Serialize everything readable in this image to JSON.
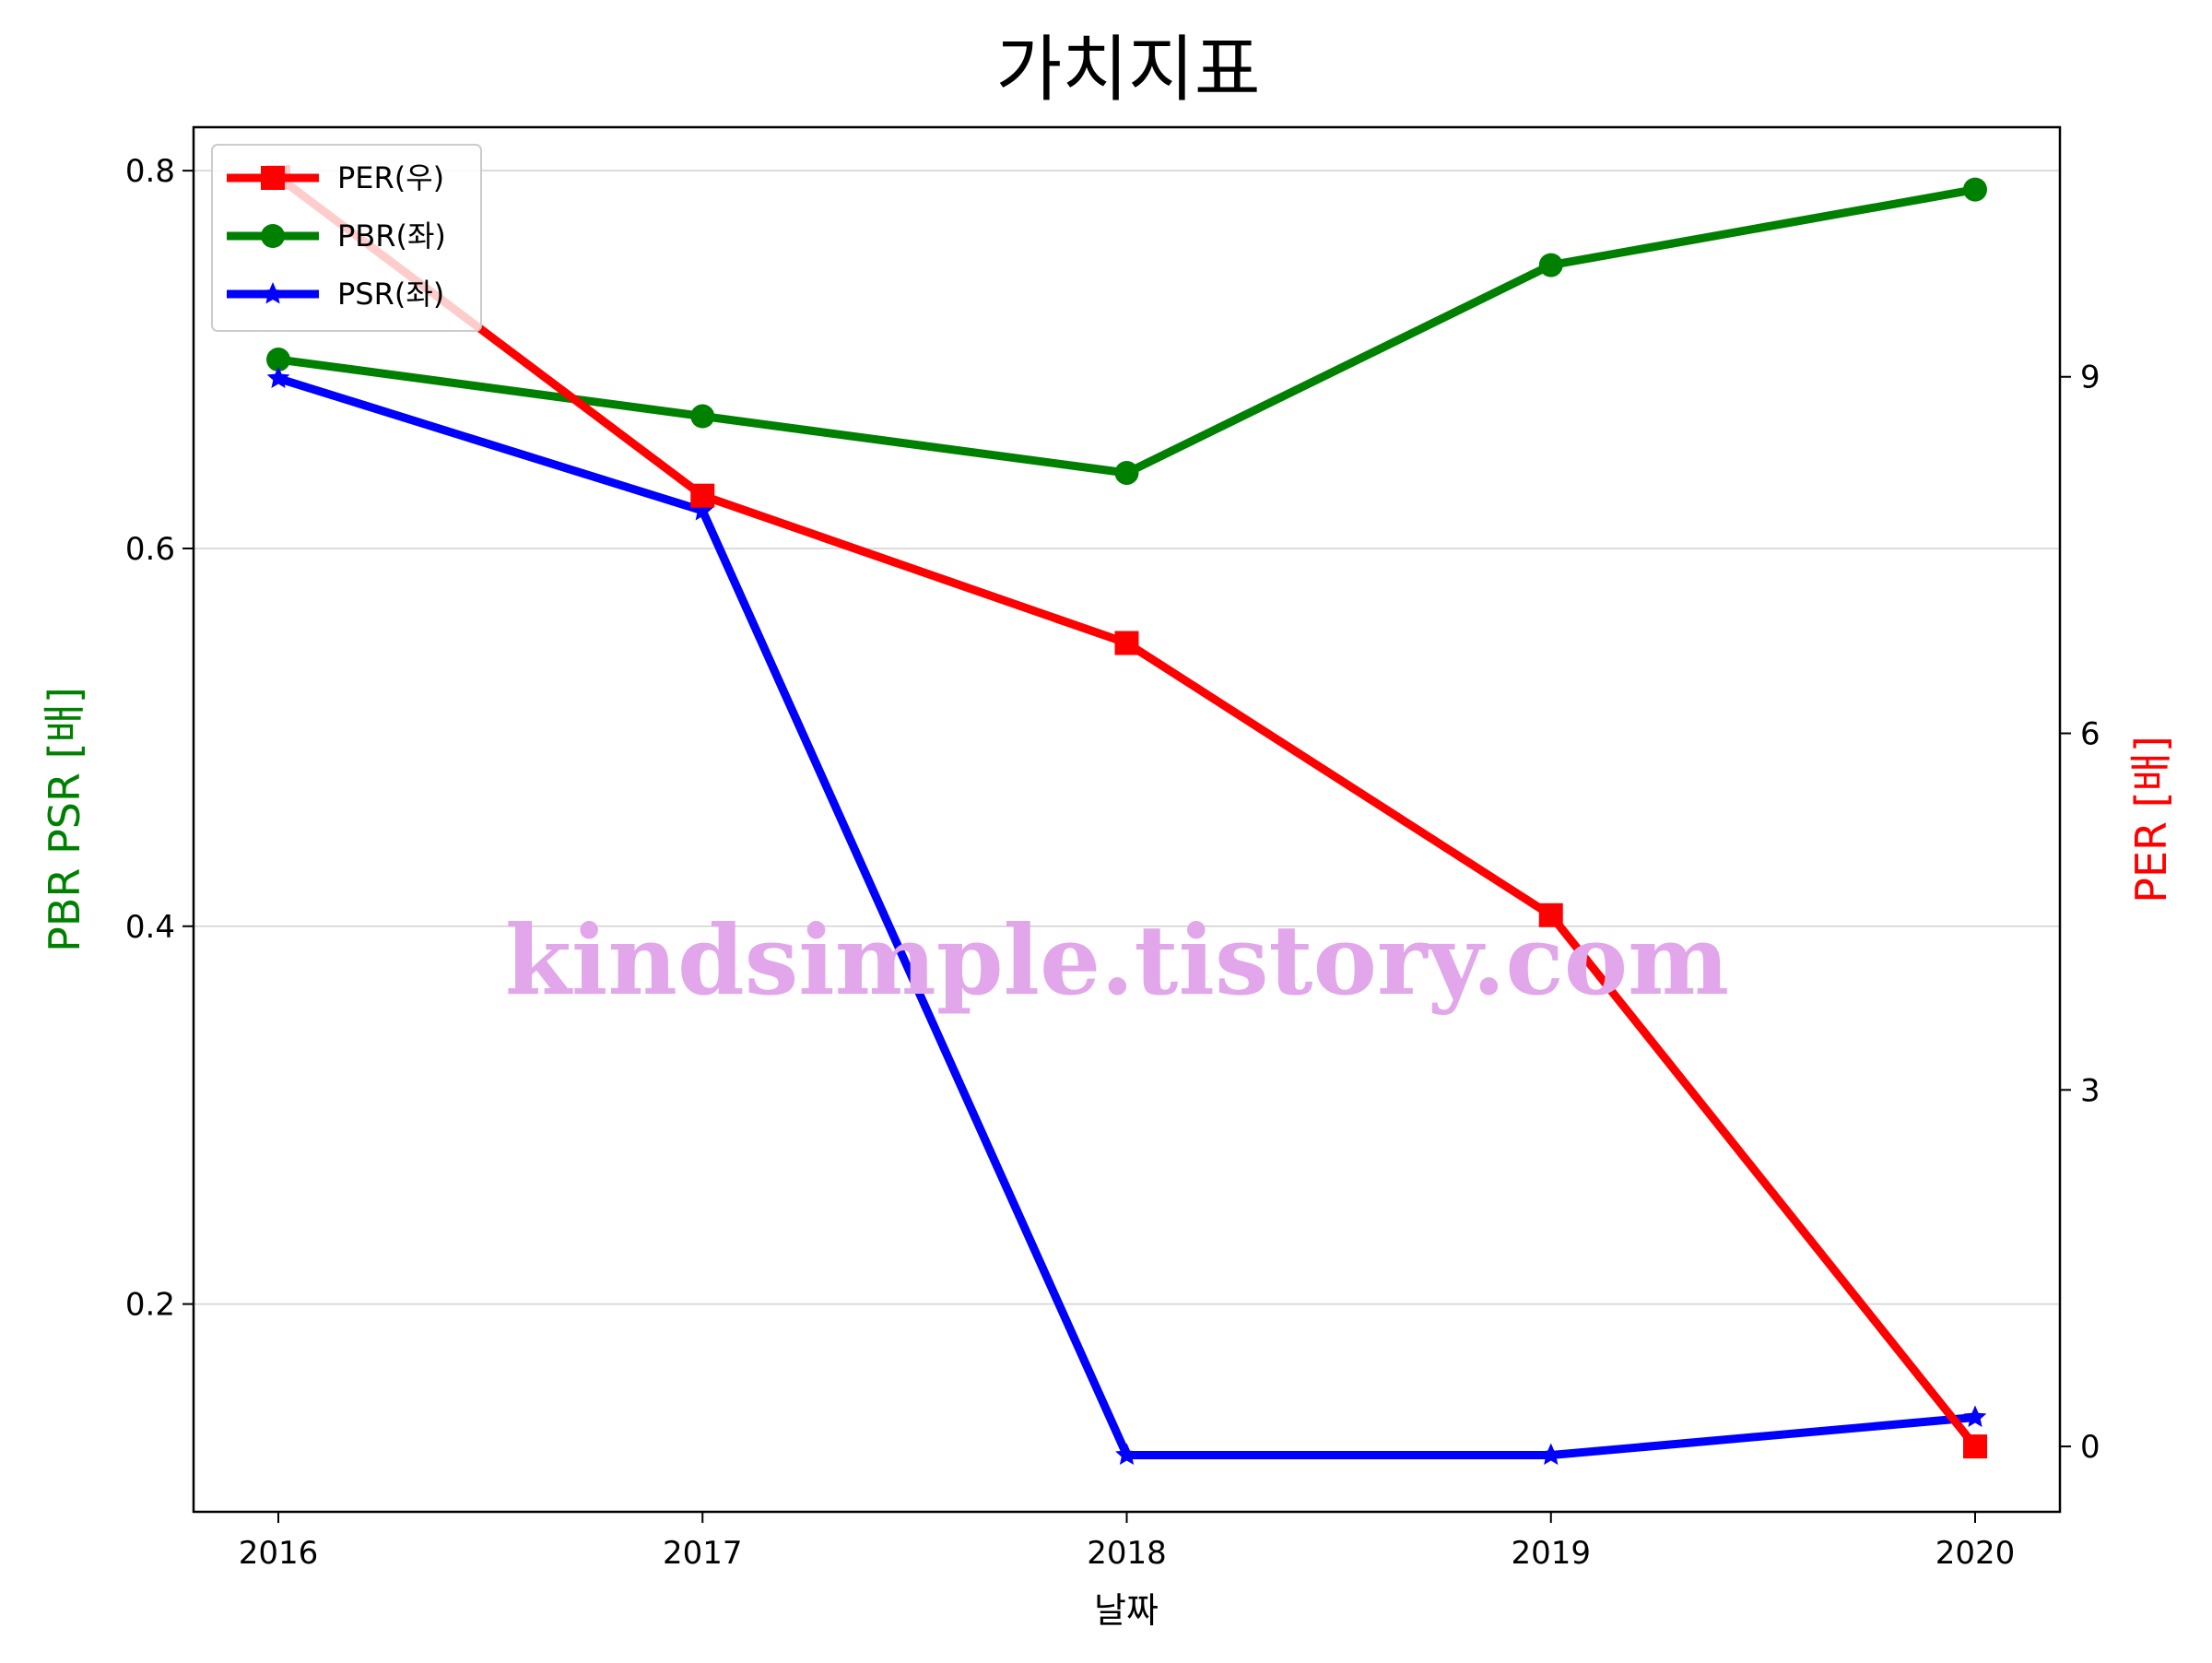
{
  "chart_data": {
    "type": "line",
    "title": "가치지표",
    "xlabel": "날짜",
    "ylabel_left": "PBR PSR [배]",
    "ylabel_right": "PER [배]",
    "ylabel_left_color": "#008000",
    "ylabel_right_color": "#ff0000",
    "categories": [
      "2016",
      "2017",
      "2018",
      "2019",
      "2020"
    ],
    "ylim_left": [
      0.09,
      0.823
    ],
    "ylim_right": [
      -0.55,
      11.1
    ],
    "yticks_left": [
      0.2,
      0.4,
      0.6,
      0.8
    ],
    "yticks_left_labels": [
      "0.2",
      "0.4",
      "0.6",
      "0.8"
    ],
    "yticks_right": [
      0,
      3,
      6,
      9
    ],
    "yticks_right_labels": [
      "0",
      "3",
      "6",
      "9"
    ],
    "grid": "horizontal",
    "legend_position": "top-left",
    "series": [
      {
        "name": "PER(우)",
        "axis": "right",
        "marker": "square",
        "color": "#ff0000",
        "values": [
          10.68,
          8.0,
          6.76,
          4.47,
          0.0
        ]
      },
      {
        "name": "PBR(좌)",
        "axis": "left",
        "marker": "circle",
        "color": "#008000",
        "values": [
          0.7,
          0.67,
          0.64,
          0.75,
          0.79
        ]
      },
      {
        "name": "PSR(좌)",
        "axis": "left",
        "marker": "star",
        "color": "#0000ff",
        "values": [
          0.69,
          0.62,
          0.12,
          0.12,
          0.14
        ]
      }
    ],
    "watermark": "kindsimple.tistory.com"
  }
}
